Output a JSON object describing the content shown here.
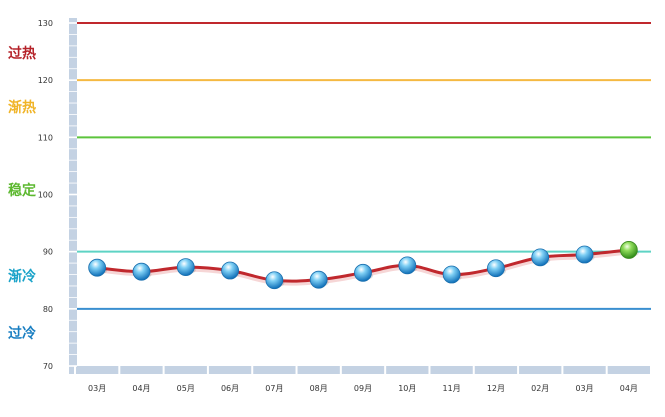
{
  "chart_data": {
    "type": "line",
    "categories": [
      "03月",
      "04月",
      "05月",
      "06月",
      "07月",
      "08月",
      "09月",
      "10月",
      "11月",
      "12月",
      "02月",
      "03月",
      "04月"
    ],
    "values": [
      87.2,
      86.5,
      87.3,
      86.7,
      85.0,
      85.1,
      86.3,
      87.6,
      86.0,
      87.1,
      89.0,
      89.5,
      90.3
    ],
    "ylim": [
      70,
      130
    ],
    "yticks": [
      70,
      80,
      90,
      100,
      110,
      120,
      130
    ],
    "grid": false,
    "reference_lines": [
      {
        "value": 130,
        "color": "#c0282d"
      },
      {
        "value": 120,
        "color": "#f5b942"
      },
      {
        "value": 110,
        "color": "#5cc43c"
      },
      {
        "value": 90,
        "color": "#5ed3c4"
      },
      {
        "value": 80,
        "color": "#3a8fd0"
      }
    ],
    "zones": [
      {
        "label": "过热",
        "value": 125,
        "color": "#b5232a"
      },
      {
        "label": "渐热",
        "value": 115.5,
        "color": "#f0b428"
      },
      {
        "label": "稳定",
        "value": 101,
        "color": "#5cb82f"
      },
      {
        "label": "渐冷",
        "value": 86,
        "color": "#1aa3c9"
      },
      {
        "label": "过冷",
        "value": 76,
        "color": "#1a7fc2"
      }
    ],
    "line_color": "#c0282d",
    "point_color": "#1b8fd4",
    "last_point_color": "#4aa82a",
    "axis_color": "#c4d2e3"
  }
}
